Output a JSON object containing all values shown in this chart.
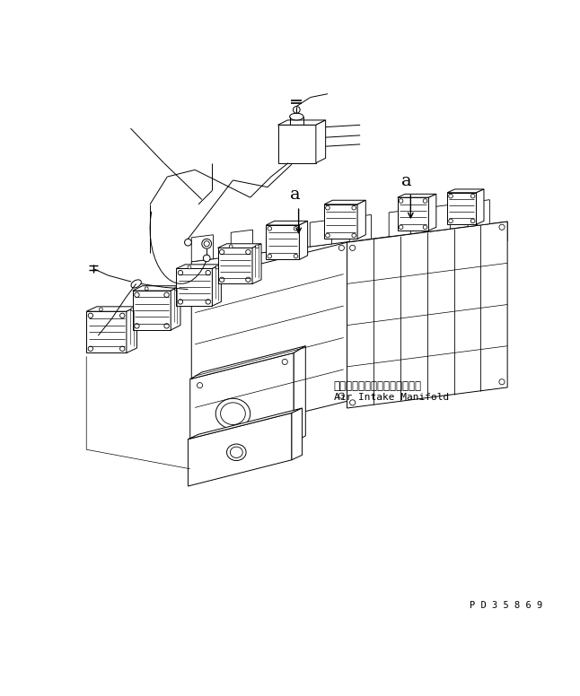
{
  "background_color": "#ffffff",
  "line_color": "#000000",
  "japanese_text": "エアーインテークマニホールド",
  "english_text": "Air Intake Manifold",
  "part_number": "P D 3 5 8 6 9",
  "figsize": [
    6.46,
    7.76
  ],
  "dpi": 100
}
